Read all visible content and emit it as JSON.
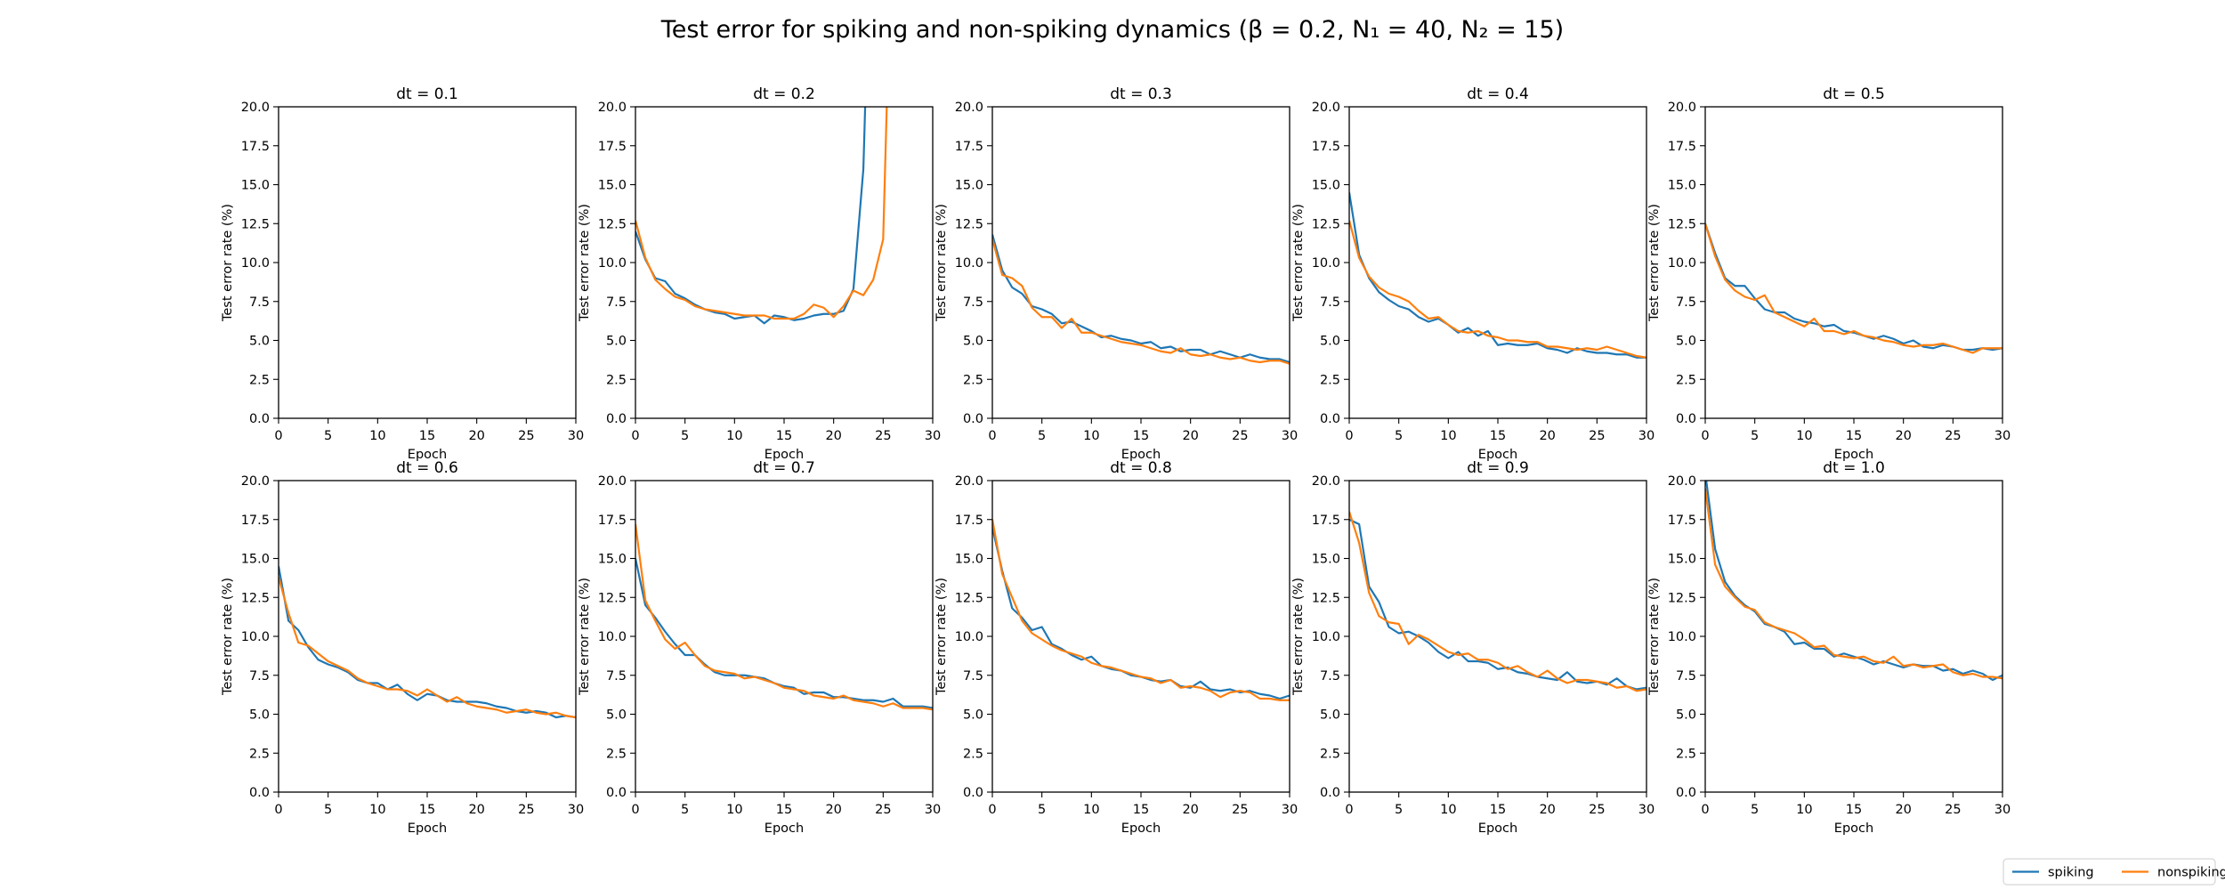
{
  "figure": {
    "suptitle": "Test error for spiking and non-spiking dynamics (β = 0.2, N₁ = 40, N₂ = 15)",
    "legend_position": "bottom-right",
    "legend": [
      {
        "name": "spiking",
        "color": "#1f77b4"
      },
      {
        "name": "nonspiking",
        "color": "#ff7f0e"
      }
    ]
  },
  "chart_data": [
    {
      "type": "line",
      "title": "dt = 0.1",
      "xlabel": "Epoch",
      "ylabel": "Test error rate (%)",
      "xlim": [
        0,
        30
      ],
      "ylim": [
        0,
        20
      ],
      "xticks": [
        0,
        5,
        10,
        15,
        20,
        25,
        30
      ],
      "yticks": [
        0.0,
        2.5,
        5.0,
        7.5,
        10.0,
        12.5,
        15.0,
        17.5,
        20.0
      ],
      "grid": false,
      "series": [
        {
          "name": "spiking",
          "color": "#1f77b4",
          "y": []
        },
        {
          "name": "nonspiking",
          "color": "#ff7f0e",
          "y": []
        }
      ]
    },
    {
      "type": "line",
      "title": "dt = 0.2",
      "xlabel": "Epoch",
      "ylabel": "Test error rate (%)",
      "xlim": [
        0,
        30
      ],
      "ylim": [
        0,
        20
      ],
      "xticks": [
        0,
        5,
        10,
        15,
        20,
        25,
        30
      ],
      "yticks": [
        0.0,
        2.5,
        5.0,
        7.5,
        10.0,
        12.5,
        15.0,
        17.5,
        20.0
      ],
      "grid": false,
      "series": [
        {
          "name": "spiking",
          "color": "#1f77b4",
          "y": [
            12.0,
            10.2,
            9.0,
            8.8,
            8.0,
            7.7,
            7.3,
            7.0,
            6.8,
            6.7,
            6.4,
            6.5,
            6.6,
            6.1,
            6.6,
            6.5,
            6.3,
            6.4,
            6.6,
            6.7,
            6.7,
            6.9,
            8.3,
            16.0,
            38.0
          ]
        },
        {
          "name": "nonspiking",
          "color": "#ff7f0e",
          "y": [
            12.7,
            10.3,
            8.9,
            8.3,
            7.8,
            7.6,
            7.2,
            7.0,
            6.9,
            6.8,
            6.7,
            6.6,
            6.6,
            6.6,
            6.4,
            6.4,
            6.4,
            6.7,
            7.3,
            7.1,
            6.5,
            7.2,
            8.2,
            7.9,
            8.9,
            11.5,
            35.0
          ]
        }
      ]
    },
    {
      "type": "line",
      "title": "dt = 0.3",
      "xlabel": "Epoch",
      "ylabel": "Test error rate (%)",
      "xlim": [
        0,
        30
      ],
      "ylim": [
        0,
        20
      ],
      "xticks": [
        0,
        5,
        10,
        15,
        20,
        25,
        30
      ],
      "yticks": [
        0.0,
        2.5,
        5.0,
        7.5,
        10.0,
        12.5,
        15.0,
        17.5,
        20.0
      ],
      "grid": false,
      "series": [
        {
          "name": "spiking",
          "color": "#1f77b4",
          "y": [
            11.8,
            9.5,
            8.4,
            8.0,
            7.2,
            7.0,
            6.7,
            6.1,
            6.2,
            5.9,
            5.6,
            5.2,
            5.3,
            5.1,
            5.0,
            4.8,
            4.9,
            4.5,
            4.6,
            4.3,
            4.4,
            4.4,
            4.1,
            4.3,
            4.1,
            3.9,
            4.1,
            3.9,
            3.8,
            3.8,
            3.6
          ]
        },
        {
          "name": "nonspiking",
          "color": "#ff7f0e",
          "y": [
            11.5,
            9.2,
            9.0,
            8.5,
            7.1,
            6.5,
            6.5,
            5.8,
            6.4,
            5.5,
            5.5,
            5.3,
            5.1,
            4.9,
            4.8,
            4.7,
            4.5,
            4.3,
            4.2,
            4.5,
            4.1,
            4.0,
            4.1,
            3.9,
            3.8,
            3.9,
            3.7,
            3.6,
            3.7,
            3.7,
            3.5
          ]
        }
      ]
    },
    {
      "type": "line",
      "title": "dt = 0.4",
      "xlabel": "Epoch",
      "ylabel": "Test error rate (%)",
      "xlim": [
        0,
        30
      ],
      "ylim": [
        0,
        20
      ],
      "xticks": [
        0,
        5,
        10,
        15,
        20,
        25,
        30
      ],
      "yticks": [
        0.0,
        2.5,
        5.0,
        7.5,
        10.0,
        12.5,
        15.0,
        17.5,
        20.0
      ],
      "grid": false,
      "series": [
        {
          "name": "spiking",
          "color": "#1f77b4",
          "y": [
            14.5,
            10.5,
            9.0,
            8.1,
            7.6,
            7.2,
            7.0,
            6.5,
            6.2,
            6.4,
            6.0,
            5.5,
            5.8,
            5.3,
            5.6,
            4.7,
            4.8,
            4.7,
            4.7,
            4.8,
            4.5,
            4.4,
            4.2,
            4.5,
            4.3,
            4.2,
            4.2,
            4.1,
            4.1,
            3.9,
            3.9
          ]
        },
        {
          "name": "nonspiking",
          "color": "#ff7f0e",
          "y": [
            12.7,
            10.3,
            9.1,
            8.4,
            8.0,
            7.8,
            7.5,
            6.9,
            6.4,
            6.5,
            6.0,
            5.6,
            5.5,
            5.6,
            5.3,
            5.2,
            5.0,
            5.0,
            4.9,
            4.9,
            4.6,
            4.6,
            4.5,
            4.4,
            4.5,
            4.4,
            4.6,
            4.4,
            4.2,
            4.0,
            3.9
          ]
        }
      ]
    },
    {
      "type": "line",
      "title": "dt = 0.5",
      "xlabel": "Epoch",
      "ylabel": "Test error rate (%)",
      "xlim": [
        0,
        30
      ],
      "ylim": [
        0,
        20
      ],
      "xticks": [
        0,
        5,
        10,
        15,
        20,
        25,
        30
      ],
      "yticks": [
        0.0,
        2.5,
        5.0,
        7.5,
        10.0,
        12.5,
        15.0,
        17.5,
        20.0
      ],
      "grid": false,
      "series": [
        {
          "name": "spiking",
          "color": "#1f77b4",
          "y": [
            12.5,
            10.6,
            9.0,
            8.5,
            8.5,
            7.7,
            7.0,
            6.8,
            6.8,
            6.4,
            6.2,
            6.1,
            5.9,
            6.0,
            5.6,
            5.5,
            5.3,
            5.1,
            5.3,
            5.1,
            4.8,
            5.0,
            4.6,
            4.5,
            4.7,
            4.6,
            4.4,
            4.4,
            4.5,
            4.4,
            4.5
          ]
        },
        {
          "name": "nonspiking",
          "color": "#ff7f0e",
          "y": [
            12.5,
            10.4,
            8.9,
            8.2,
            7.8,
            7.6,
            7.9,
            6.8,
            6.5,
            6.2,
            5.9,
            6.4,
            5.6,
            5.6,
            5.4,
            5.6,
            5.3,
            5.2,
            5.0,
            4.9,
            4.7,
            4.6,
            4.7,
            4.7,
            4.8,
            4.6,
            4.4,
            4.2,
            4.5,
            4.5,
            4.5
          ]
        }
      ]
    },
    {
      "type": "line",
      "title": "dt = 0.6",
      "xlabel": "Epoch",
      "ylabel": "Test error rate (%)",
      "xlim": [
        0,
        30
      ],
      "ylim": [
        0,
        20
      ],
      "xticks": [
        0,
        5,
        10,
        15,
        20,
        25,
        30
      ],
      "yticks": [
        0.0,
        2.5,
        5.0,
        7.5,
        10.0,
        12.5,
        15.0,
        17.5,
        20.0
      ],
      "grid": false,
      "series": [
        {
          "name": "spiking",
          "color": "#1f77b4",
          "y": [
            14.5,
            11.0,
            10.4,
            9.3,
            8.5,
            8.2,
            8.0,
            7.7,
            7.2,
            7.0,
            7.0,
            6.6,
            6.9,
            6.3,
            5.9,
            6.3,
            6.2,
            5.9,
            5.8,
            5.8,
            5.8,
            5.7,
            5.5,
            5.4,
            5.2,
            5.1,
            5.2,
            5.1,
            4.8,
            4.9,
            4.8
          ]
        },
        {
          "name": "nonspiking",
          "color": "#ff7f0e",
          "y": [
            13.8,
            11.5,
            9.6,
            9.4,
            8.9,
            8.4,
            8.1,
            7.8,
            7.3,
            7.0,
            6.8,
            6.6,
            6.6,
            6.5,
            6.2,
            6.6,
            6.2,
            5.8,
            6.1,
            5.7,
            5.5,
            5.4,
            5.3,
            5.1,
            5.2,
            5.3,
            5.1,
            5.0,
            5.1,
            4.9,
            4.8
          ]
        }
      ]
    },
    {
      "type": "line",
      "title": "dt = 0.7",
      "xlabel": "Epoch",
      "ylabel": "Test error rate (%)",
      "xlim": [
        0,
        30
      ],
      "ylim": [
        0,
        20
      ],
      "xticks": [
        0,
        5,
        10,
        15,
        20,
        25,
        30
      ],
      "yticks": [
        0.0,
        2.5,
        5.0,
        7.5,
        10.0,
        12.5,
        15.0,
        17.5,
        20.0
      ],
      "grid": false,
      "series": [
        {
          "name": "spiking",
          "color": "#1f77b4",
          "y": [
            15.0,
            12.0,
            11.2,
            10.3,
            9.5,
            8.8,
            8.8,
            8.2,
            7.7,
            7.5,
            7.5,
            7.5,
            7.4,
            7.3,
            7.0,
            6.8,
            6.7,
            6.3,
            6.4,
            6.4,
            6.1,
            6.1,
            6.0,
            5.9,
            5.9,
            5.8,
            6.0,
            5.5,
            5.5,
            5.5,
            5.4
          ]
        },
        {
          "name": "nonspiking",
          "color": "#ff7f0e",
          "y": [
            17.2,
            12.3,
            11.0,
            9.8,
            9.2,
            9.6,
            8.8,
            8.1,
            7.8,
            7.7,
            7.6,
            7.3,
            7.4,
            7.2,
            7.0,
            6.7,
            6.6,
            6.5,
            6.2,
            6.1,
            6.0,
            6.2,
            5.9,
            5.8,
            5.7,
            5.5,
            5.7,
            5.4,
            5.4,
            5.4,
            5.3
          ]
        }
      ]
    },
    {
      "type": "line",
      "title": "dt = 0.8",
      "xlabel": "Epoch",
      "ylabel": "Test error rate (%)",
      "xlim": [
        0,
        30
      ],
      "ylim": [
        0,
        20
      ],
      "xticks": [
        0,
        5,
        10,
        15,
        20,
        25,
        30
      ],
      "yticks": [
        0.0,
        2.5,
        5.0,
        7.5,
        10.0,
        12.5,
        15.0,
        17.5,
        20.0
      ],
      "grid": false,
      "series": [
        {
          "name": "spiking",
          "color": "#1f77b4",
          "y": [
            17.0,
            14.2,
            11.8,
            11.2,
            10.4,
            10.6,
            9.5,
            9.2,
            8.8,
            8.5,
            8.7,
            8.1,
            7.9,
            7.8,
            7.5,
            7.4,
            7.2,
            7.1,
            7.2,
            6.8,
            6.7,
            7.1,
            6.6,
            6.5,
            6.6,
            6.4,
            6.5,
            6.3,
            6.2,
            6.0,
            6.2
          ]
        },
        {
          "name": "nonspiking",
          "color": "#ff7f0e",
          "y": [
            17.5,
            14.0,
            12.5,
            11.0,
            10.2,
            9.8,
            9.4,
            9.1,
            8.9,
            8.7,
            8.3,
            8.1,
            8.0,
            7.8,
            7.6,
            7.4,
            7.3,
            7.0,
            7.2,
            6.7,
            6.8,
            6.7,
            6.5,
            6.1,
            6.4,
            6.5,
            6.4,
            6.0,
            6.0,
            5.9,
            5.9
          ]
        }
      ]
    },
    {
      "type": "line",
      "title": "dt = 0.9",
      "xlabel": "Epoch",
      "ylabel": "Test error rate (%)",
      "xlim": [
        0,
        30
      ],
      "ylim": [
        0,
        20
      ],
      "xticks": [
        0,
        5,
        10,
        15,
        20,
        25,
        30
      ],
      "yticks": [
        0.0,
        2.5,
        5.0,
        7.5,
        10.0,
        12.5,
        15.0,
        17.5,
        20.0
      ],
      "grid": false,
      "series": [
        {
          "name": "spiking",
          "color": "#1f77b4",
          "y": [
            17.5,
            17.2,
            13.2,
            12.2,
            10.6,
            10.2,
            10.3,
            10.0,
            9.6,
            9.0,
            8.6,
            9.0,
            8.4,
            8.4,
            8.3,
            7.9,
            8.0,
            7.7,
            7.6,
            7.4,
            7.3,
            7.2,
            7.7,
            7.1,
            7.0,
            7.1,
            6.9,
            7.3,
            6.8,
            6.6,
            6.7
          ]
        },
        {
          "name": "nonspiking",
          "color": "#ff7f0e",
          "y": [
            18.0,
            16.0,
            12.8,
            11.3,
            10.9,
            10.8,
            9.5,
            10.1,
            9.8,
            9.4,
            9.0,
            8.8,
            8.9,
            8.5,
            8.5,
            8.3,
            7.9,
            8.1,
            7.7,
            7.4,
            7.8,
            7.3,
            7.0,
            7.2,
            7.2,
            7.1,
            7.0,
            6.7,
            6.8,
            6.5,
            6.6
          ]
        }
      ]
    },
    {
      "type": "line",
      "title": "dt = 1.0",
      "xlabel": "Epoch",
      "ylabel": "Test error rate (%)",
      "xlim": [
        0,
        30
      ],
      "ylim": [
        0,
        20
      ],
      "xticks": [
        0,
        5,
        10,
        15,
        20,
        25,
        30
      ],
      "yticks": [
        0.0,
        2.5,
        5.0,
        7.5,
        10.0,
        12.5,
        15.0,
        17.5,
        20.0
      ],
      "grid": false,
      "series": [
        {
          "name": "spiking",
          "color": "#1f77b4",
          "y": [
            20.5,
            15.6,
            13.5,
            12.6,
            12.0,
            11.6,
            10.8,
            10.6,
            10.3,
            9.5,
            9.6,
            9.2,
            9.2,
            8.7,
            8.9,
            8.7,
            8.5,
            8.2,
            8.4,
            8.2,
            8.0,
            8.2,
            8.1,
            8.1,
            7.8,
            7.9,
            7.6,
            7.8,
            7.6,
            7.2,
            7.5
          ]
        },
        {
          "name": "nonspiking",
          "color": "#ff7f0e",
          "y": [
            19.5,
            14.6,
            13.2,
            12.5,
            11.9,
            11.7,
            10.9,
            10.6,
            10.4,
            10.2,
            9.8,
            9.3,
            9.4,
            8.8,
            8.7,
            8.6,
            8.7,
            8.4,
            8.3,
            8.7,
            8.1,
            8.2,
            8.0,
            8.1,
            8.2,
            7.7,
            7.5,
            7.6,
            7.4,
            7.4,
            7.3
          ]
        }
      ]
    }
  ]
}
